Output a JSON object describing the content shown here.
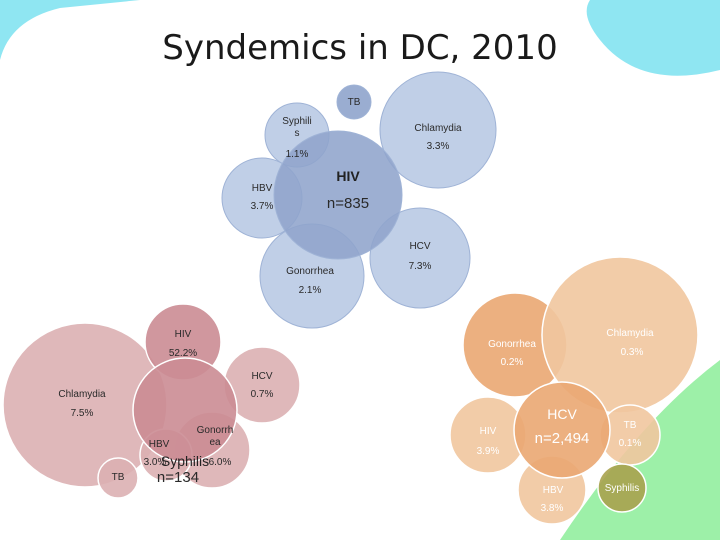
{
  "title": "Syndemics in DC, 2010",
  "hiv_cluster": {
    "hub_name": "HIV",
    "hub_n": "n=835",
    "tb_label": "TB",
    "syphilis_label": "Syphili\ns",
    "syphilis_pct": "1.1%",
    "chlamydia_label": "Chlamydia",
    "chlamydia_pct": "3.3%",
    "hbv_label": "HBV",
    "hbv_pct": "3.7%",
    "hcv_label": "HCV",
    "hcv_pct": "7.3%",
    "gonorrhea_label": "Gonorrhea",
    "gonorrhea_pct": "2.1%"
  },
  "syphilis_cluster": {
    "hub_name": "Syphilis",
    "hub_n": "n=134",
    "hiv_label": "HIV",
    "hiv_pct": "52.2%",
    "hcv_label": "HCV",
    "hcv_pct": "0.7%",
    "chlamydia_label": "Chlamydia",
    "chlamydia_pct": "7.5%",
    "hbv_label": "HBV",
    "hbv_pct": "3.0%",
    "gonorrhea_label": "Gonorrh\nea",
    "gonorrhea_pct": "6.0%",
    "tb_label": "TB"
  },
  "hcv_cluster": {
    "hub_name": "HCV",
    "hub_n": "n=2,494",
    "gonorrhea_label": "Gonorrhea",
    "gonorrhea_pct": "0.2%",
    "chlamydia_label": "Chlamydia",
    "chlamydia_pct": "0.3%",
    "hiv_label": "HIV",
    "hiv_pct": "3.9%",
    "tb_label": "TB",
    "tb_pct": "0.1%",
    "hbv_label": "HBV",
    "hbv_pct": "3.8%",
    "syphilis_label": "Syphilis"
  },
  "colors": {
    "blue_hub": "#8fa4cc",
    "blue_satellite": "#b5c7e3",
    "red_hub": "#cb8c93",
    "red_satellite": "#dcb0b3",
    "orange_hub": "#eaa772",
    "orange_satellite": "#f1c69e",
    "olive": "#a8a24e",
    "cyan_deco": "#8fe6f2",
    "green_deco": "#9df0a8"
  }
}
